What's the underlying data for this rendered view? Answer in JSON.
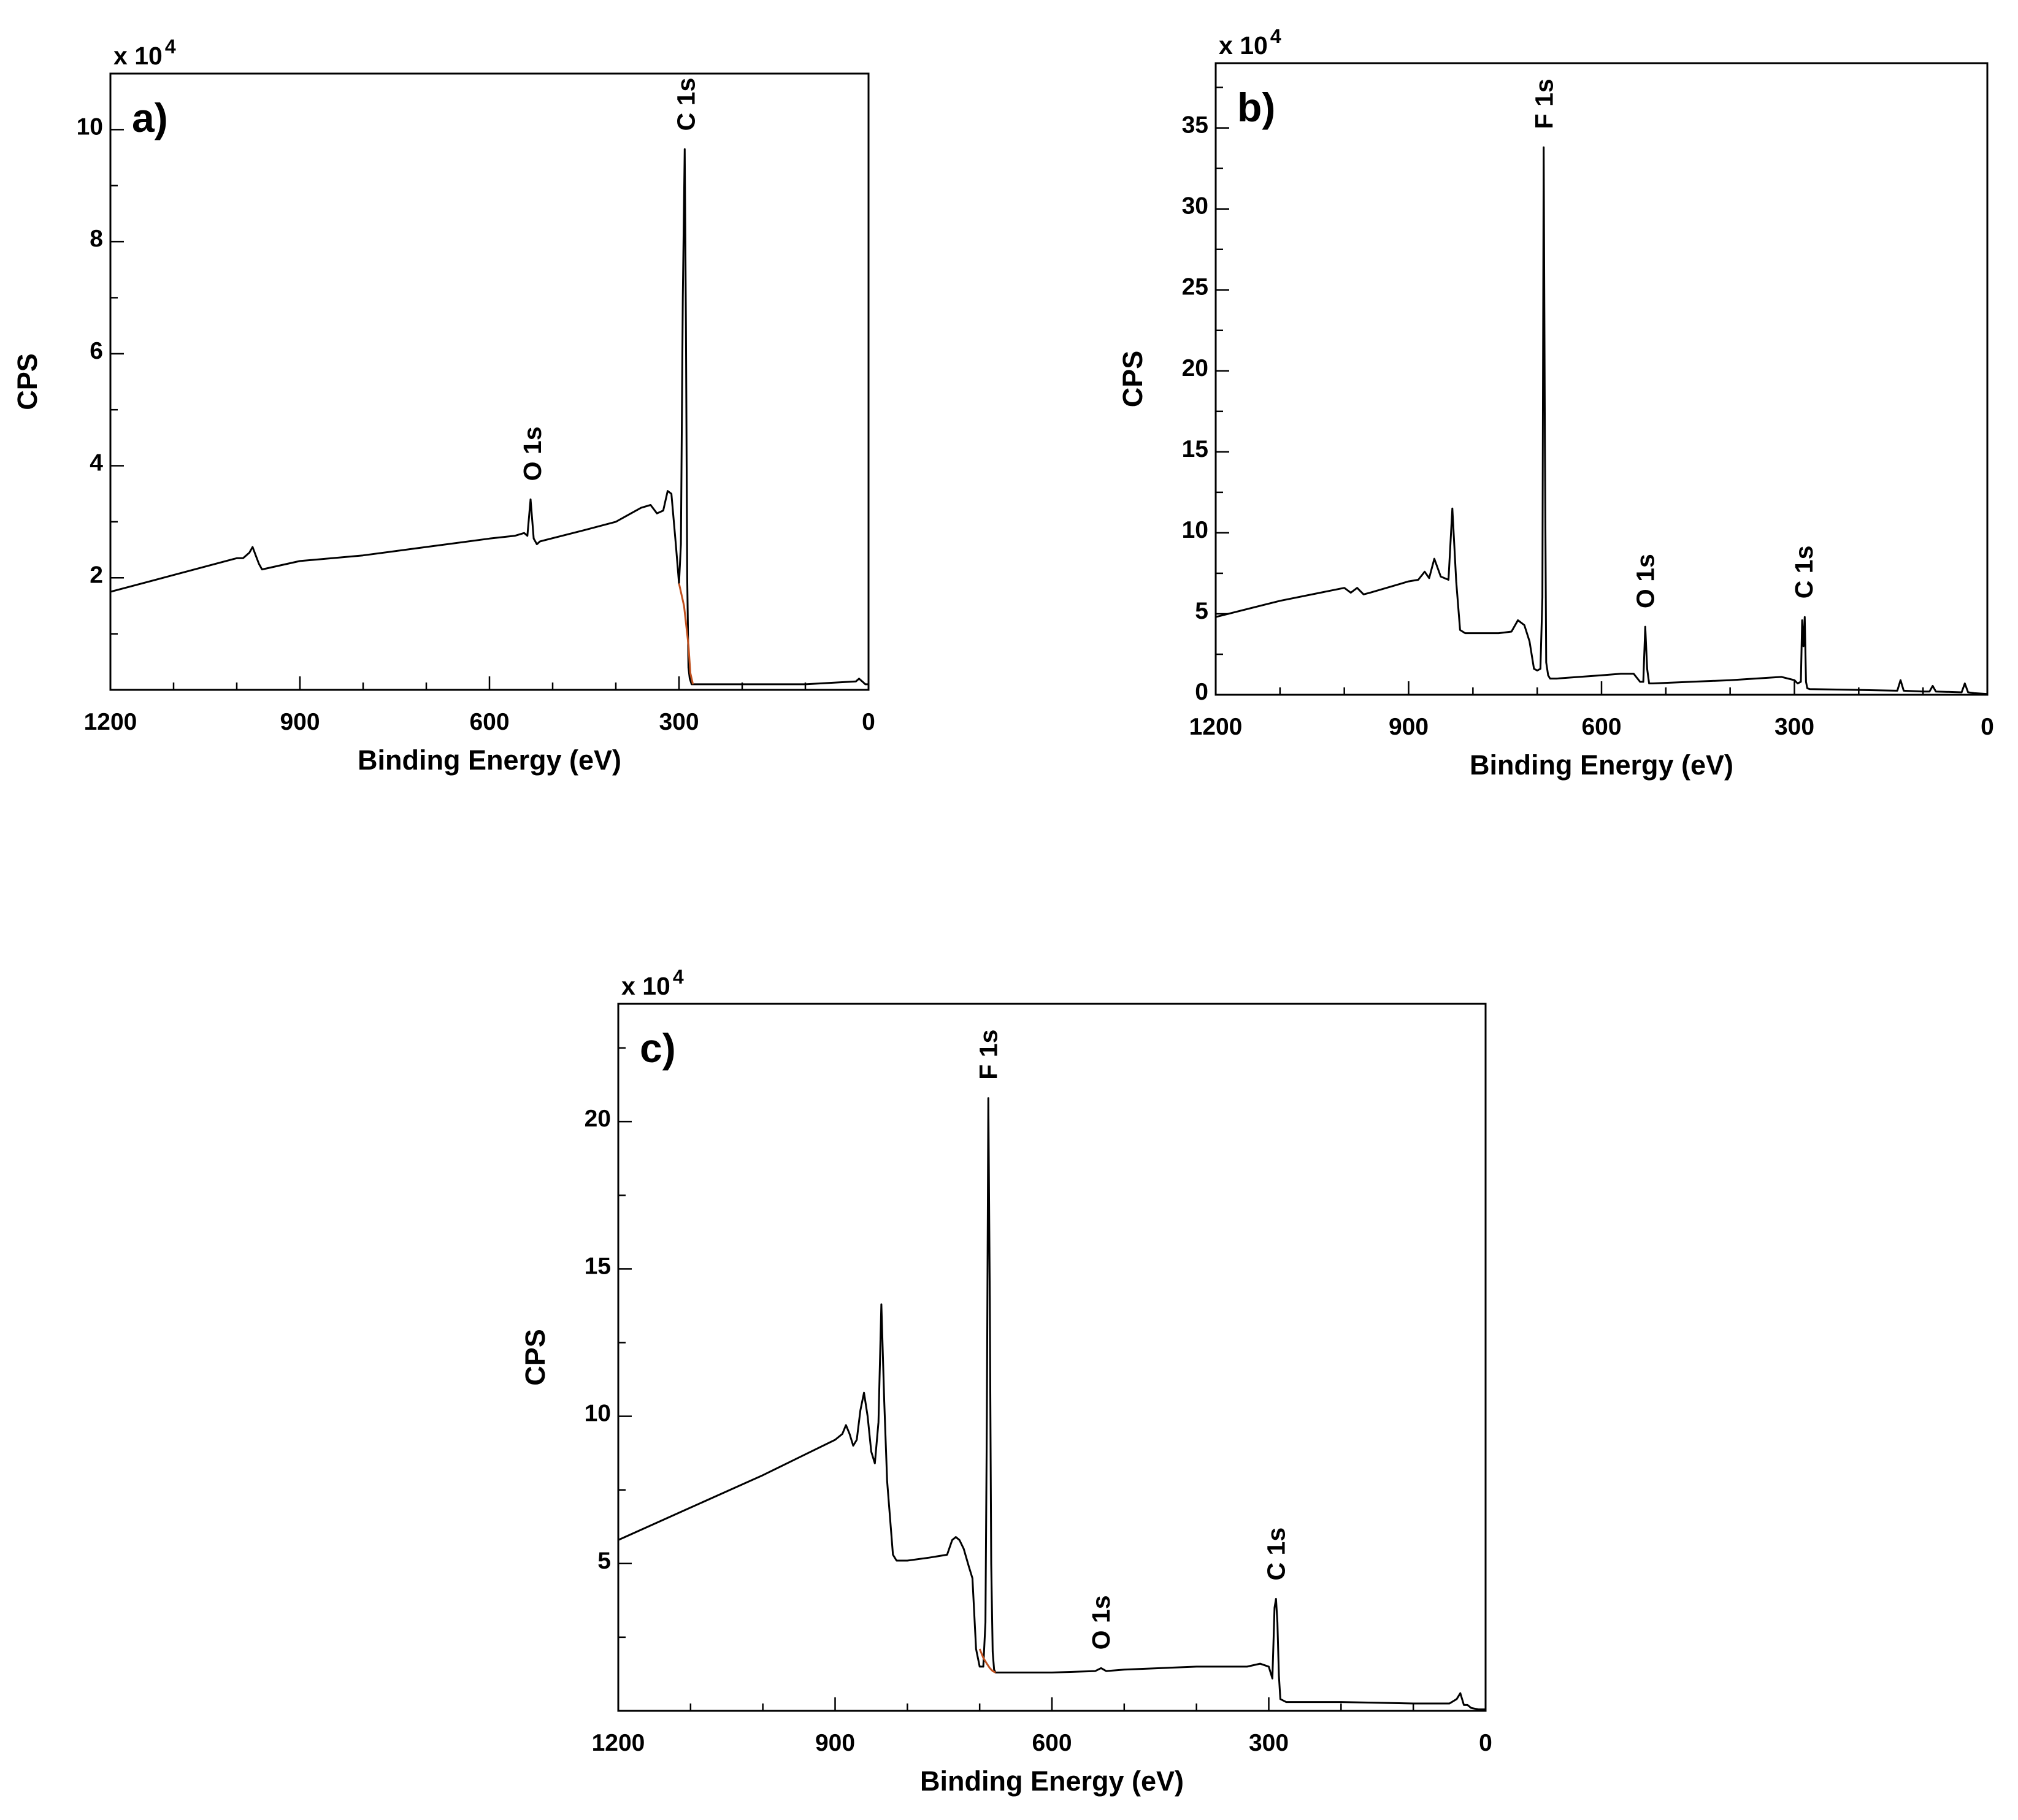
{
  "chart_data": [
    {
      "type": "line",
      "panel_label": "a)",
      "xlabel": "Binding Energy (eV)",
      "ylabel": "CPS",
      "y_multiplier": "x 10",
      "y_multiplier_exponent": "4",
      "xlim": [
        1200,
        0
      ],
      "ylim": [
        0,
        11
      ],
      "x_ticks": [
        1200,
        900,
        600,
        300,
        0
      ],
      "x_tick_labels": [
        "1200",
        "900",
        "600",
        "300",
        "0"
      ],
      "y_ticks": [
        2,
        4,
        6,
        8,
        10
      ],
      "y_tick_labels": [
        "2",
        "4",
        "6",
        "8",
        "10"
      ],
      "series": [
        {
          "x": [
            1200,
            1100,
            1000,
            990,
            980,
            975,
            970,
            965,
            960,
            900,
            800,
            700,
            600,
            560,
            545,
            540,
            535,
            530,
            525,
            520,
            450,
            400,
            360,
            345,
            335,
            325,
            318,
            312,
            305,
            300,
            297,
            294,
            291,
            289,
            287,
            285,
            283,
            280,
            275,
            200,
            100,
            20,
            15,
            10,
            5,
            0
          ],
          "y": [
            1.75,
            2.05,
            2.35,
            2.35,
            2.45,
            2.55,
            2.4,
            2.25,
            2.15,
            2.3,
            2.4,
            2.55,
            2.7,
            2.75,
            2.8,
            2.75,
            3.4,
            2.7,
            2.6,
            2.65,
            2.85,
            3.0,
            3.25,
            3.3,
            3.15,
            3.2,
            3.55,
            3.5,
            2.6,
            1.9,
            2.6,
            7.0,
            9.65,
            6.5,
            2.0,
            0.4,
            0.2,
            0.1,
            0.1,
            0.1,
            0.1,
            0.15,
            0.2,
            0.15,
            0.1,
            0.1
          ],
          "background_x": [
            300,
            292,
            285,
            282,
            278
          ],
          "background_y": [
            1.9,
            1.5,
            0.8,
            0.3,
            0.1
          ]
        }
      ],
      "annotations": [
        {
          "text": "O 1s",
          "x": 532,
          "y": 3.4
        },
        {
          "text": "C 1s",
          "x": 289,
          "y": 9.65
        }
      ]
    },
    {
      "type": "line",
      "panel_label": "b)",
      "xlabel": "Binding Energy (eV)",
      "ylabel": "CPS",
      "y_multiplier": "x 10",
      "y_multiplier_exponent": "4",
      "xlim": [
        1200,
        0
      ],
      "ylim": [
        0,
        39
      ],
      "x_ticks": [
        1200,
        900,
        600,
        300,
        0
      ],
      "x_tick_labels": [
        "1200",
        "900",
        "600",
        "300",
        "0"
      ],
      "y_ticks": [
        0,
        5,
        10,
        15,
        20,
        25,
        30,
        35
      ],
      "y_tick_labels": [
        "0",
        "5",
        "10",
        "15",
        "20",
        "25",
        "30",
        "35"
      ],
      "series": [
        {
          "x": [
            1200,
            1100,
            1000,
            990,
            980,
            970,
            960,
            900,
            885,
            875,
            868,
            860,
            850,
            838,
            832,
            826,
            820,
            812,
            810,
            790,
            760,
            740,
            730,
            720,
            712,
            705,
            700,
            695,
            692,
            690,
            688,
            686,
            683,
            680,
            670,
            600,
            570,
            550,
            540,
            535,
            532,
            529,
            526,
            520,
            400,
            320,
            300,
            295,
            290,
            288,
            286,
            284,
            282,
            280,
            276,
            200,
            140,
            135,
            130,
            100,
            90,
            85,
            80,
            40,
            35,
            30,
            20,
            0
          ],
          "y": [
            4.8,
            5.8,
            6.6,
            6.3,
            6.6,
            6.2,
            6.3,
            7.0,
            7.1,
            7.6,
            7.2,
            8.4,
            7.3,
            7.1,
            11.5,
            7.0,
            4.0,
            3.8,
            3.8,
            3.8,
            3.8,
            3.9,
            4.6,
            4.3,
            3.3,
            1.6,
            1.5,
            1.6,
            6.0,
            33.8,
            15.5,
            2.0,
            1.2,
            1.0,
            1.0,
            1.2,
            1.3,
            1.3,
            0.8,
            0.8,
            4.2,
            1.6,
            0.7,
            0.7,
            0.9,
            1.1,
            0.9,
            0.7,
            0.8,
            4.6,
            3.0,
            4.8,
            0.8,
            0.4,
            0.35,
            0.3,
            0.25,
            0.9,
            0.25,
            0.2,
            0.2,
            0.55,
            0.2,
            0.15,
            0.7,
            0.15,
            0.1,
            0.05
          ]
        }
      ],
      "annotations": [
        {
          "text": "F 1s",
          "x": 689,
          "y": 33.8
        },
        {
          "text": "O 1s",
          "x": 532,
          "y": 4.2
        },
        {
          "text": "C 1s",
          "x": 285,
          "y": 4.8
        }
      ]
    },
    {
      "type": "line",
      "panel_label": "c)",
      "xlabel": "Binding Energy (eV)",
      "ylabel": "CPS",
      "y_multiplier": "x 10",
      "y_multiplier_exponent": "4",
      "xlim": [
        1200,
        0
      ],
      "ylim": [
        0,
        24
      ],
      "x_ticks": [
        1200,
        900,
        600,
        300,
        0
      ],
      "x_tick_labels": [
        "1200",
        "900",
        "600",
        "300",
        "0"
      ],
      "y_ticks": [
        5,
        10,
        15,
        20
      ],
      "y_tick_labels": [
        "5",
        "10",
        "15",
        "20"
      ],
      "series": [
        {
          "x": [
            1200,
            1100,
            1000,
            950,
            900,
            890,
            885,
            880,
            875,
            870,
            865,
            860,
            855,
            850,
            845,
            840,
            836,
            832,
            828,
            820,
            815,
            800,
            770,
            745,
            738,
            733,
            728,
            722,
            715,
            710,
            705,
            700,
            695,
            692,
            690,
            688,
            686,
            684,
            682,
            680,
            678,
            670,
            600,
            540,
            532,
            525,
            500,
            400,
            330,
            312,
            300,
            295,
            292,
            290,
            288,
            286,
            284,
            280,
            276,
            270,
            200,
            100,
            50,
            40,
            35,
            30,
            25,
            20,
            10,
            0
          ],
          "y": [
            5.8,
            6.9,
            8.0,
            8.6,
            9.2,
            9.4,
            9.7,
            9.4,
            9.0,
            9.2,
            10.2,
            10.8,
            10.0,
            8.8,
            8.4,
            9.8,
            13.8,
            10.5,
            7.8,
            5.3,
            5.1,
            5.1,
            5.2,
            5.3,
            5.8,
            5.9,
            5.8,
            5.5,
            4.9,
            4.5,
            2.1,
            1.5,
            1.5,
            3.0,
            10.0,
            20.8,
            14.0,
            5.0,
            2.0,
            1.4,
            1.3,
            1.3,
            1.3,
            1.35,
            1.45,
            1.35,
            1.4,
            1.5,
            1.5,
            1.6,
            1.5,
            1.1,
            3.5,
            3.8,
            3.0,
            1.2,
            0.4,
            0.35,
            0.3,
            0.3,
            0.3,
            0.25,
            0.25,
            0.4,
            0.6,
            0.2,
            0.2,
            0.1,
            0.05,
            0.05
          ],
          "background_x": [
            700,
            695,
            690,
            686,
            682,
            678
          ],
          "background_y": [
            2.1,
            1.8,
            1.6,
            1.45,
            1.35,
            1.3
          ]
        }
      ],
      "annotations": [
        {
          "text": "F 1s",
          "x": 688,
          "y": 20.8
        },
        {
          "text": "O 1s",
          "x": 532,
          "y": 1.45
        },
        {
          "text": "C 1s",
          "x": 290,
          "y": 3.8
        }
      ]
    }
  ],
  "colors": {
    "line": "#000000",
    "background_line": "#c0501e",
    "frame": "#000000"
  }
}
